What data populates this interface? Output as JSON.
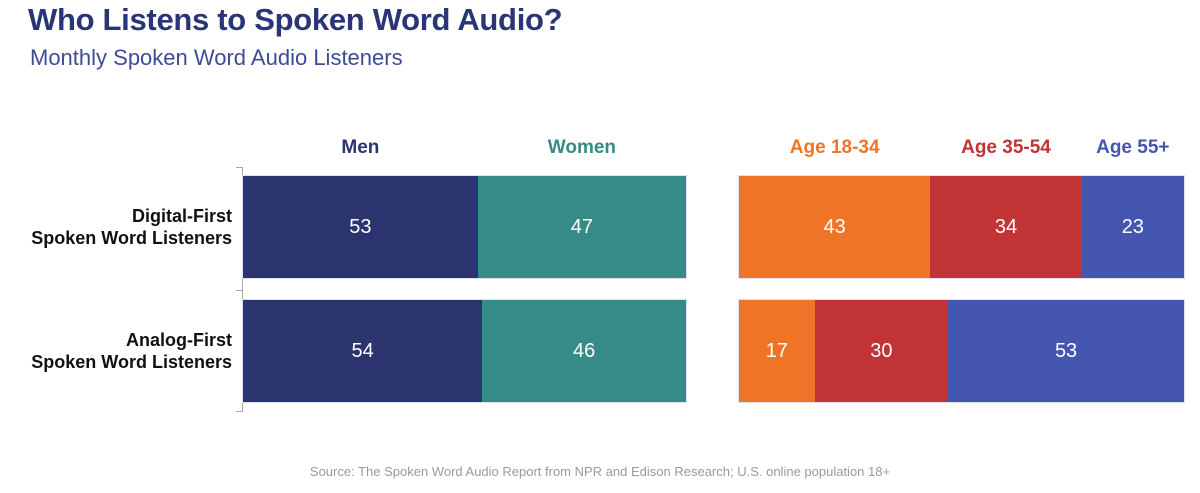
{
  "header": {
    "title": "Who Listens to Spoken Word Audio?",
    "subtitle": "Monthly Spoken Word Audio Listeners"
  },
  "colors": {
    "title_text": "#283577",
    "subtitle_text": "#3c4c96",
    "row_label_text": "#111111",
    "value_text": "#ffffff",
    "axis_line": "#a8a8a8",
    "source_text": "#9a9a9a",
    "men_navy": "#2b346e",
    "women_teal": "#378b86",
    "age_18_34_orange": "#ef7428",
    "age_35_54_red": "#c13334",
    "age_55_blue": "#4456af"
  },
  "chart_data": {
    "type": "bar",
    "subtype": "horizontal-stacked-100pct",
    "title": "Who Listens to Spoken Word Audio?",
    "subtitle": "Monthly Spoken Word Audio Listeners",
    "legend_position": "top",
    "value_labels": "inside, white",
    "categories": [
      "Digital-First Spoken Word Listeners",
      "Analog-First Spoken Word Listeners"
    ],
    "panels": [
      {
        "name": "gender",
        "series": [
          {
            "name": "Men",
            "color": "#2b346e",
            "values": [
              53,
              54
            ]
          },
          {
            "name": "Women",
            "color": "#378b86",
            "values": [
              47,
              46
            ]
          }
        ]
      },
      {
        "name": "age",
        "series": [
          {
            "name": "Age 18-34",
            "color": "#ef7428",
            "values": [
              43,
              17
            ]
          },
          {
            "name": "Age 35-54",
            "color": "#c13334",
            "values": [
              34,
              30
            ]
          },
          {
            "name": "Age 55+",
            "color": "#4456af",
            "values": [
              23,
              53
            ]
          }
        ]
      }
    ]
  },
  "row_labels": [
    {
      "line1": "Digital-First",
      "line2": "Spoken Word Listeners"
    },
    {
      "line1": "Analog-First",
      "line2": "Spoken Word Listeners"
    }
  ],
  "source": "Source: The Spoken Word Audio Report from NPR and Edison Research; U.S. online population 18+"
}
